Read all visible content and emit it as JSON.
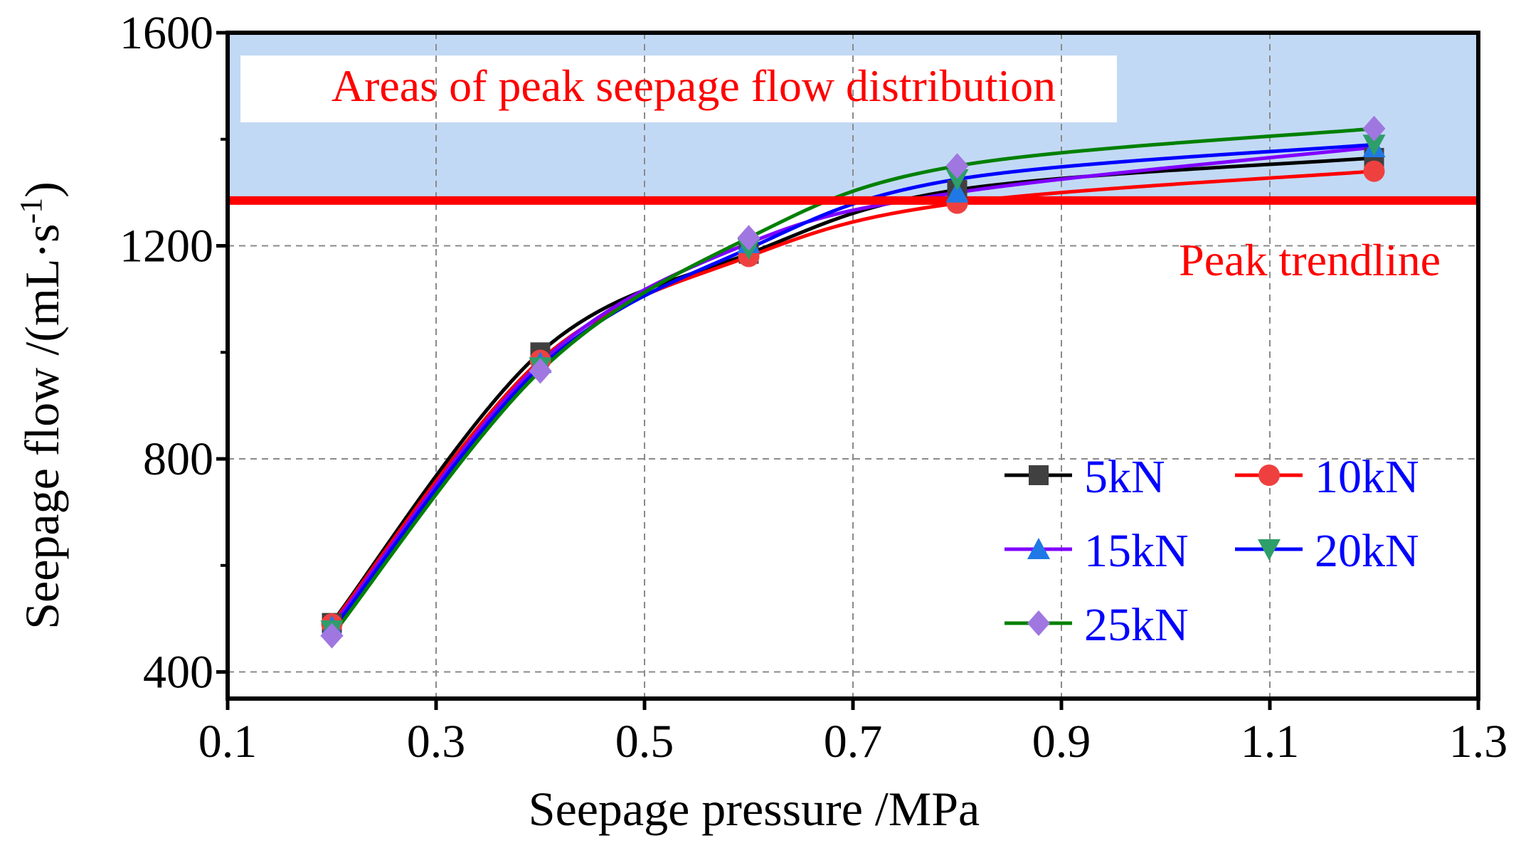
{
  "chart_data": {
    "type": "line",
    "xlabel": "Seepage pressure /MPa",
    "ylabel_main": "Seepage flow /(mL·s",
    "ylabel_sup": "-1",
    "ylabel_close": ")",
    "xlim": [
      0.1,
      1.3
    ],
    "ylim": [
      350,
      1600
    ],
    "x_ticks": [
      0.1,
      0.3,
      0.5,
      0.7,
      0.9,
      1.1,
      1.3
    ],
    "x_tick_labels": [
      "0.1",
      "0.3",
      "0.5",
      "0.7",
      "0.9",
      "1.1",
      "1.3"
    ],
    "y_ticks": [
      400,
      800,
      1200,
      1600
    ],
    "y_tick_labels": [
      "400",
      "800",
      "1200",
      "1600"
    ],
    "y_minor_ticks": [
      600,
      1000,
      1400
    ],
    "grid": true,
    "x": [
      0.2,
      0.4,
      0.6,
      0.8,
      1.2
    ],
    "series": [
      {
        "name": "5kN",
        "values": [
          492,
          1000,
          1185,
          1305,
          1365
        ],
        "color": "#000000",
        "marker": "square",
        "marker_color": "#404040"
      },
      {
        "name": "10kN",
        "values": [
          490,
          985,
          1180,
          1280,
          1340
        ],
        "color": "#ff0000",
        "marker": "circle",
        "marker_color": "#ef4040"
      },
      {
        "name": "15kN",
        "values": [
          485,
          980,
          1205,
          1300,
          1385
        ],
        "color": "#8000ff",
        "marker": "triangle-up",
        "marker_color": "#1f78e6"
      },
      {
        "name": "20kN",
        "values": [
          478,
          972,
          1195,
          1325,
          1390
        ],
        "color": "#0000ff",
        "marker": "triangle-down",
        "marker_color": "#2e9e6a"
      },
      {
        "name": "25kN",
        "values": [
          468,
          965,
          1215,
          1350,
          1420
        ],
        "color": "#008000",
        "marker": "diamond",
        "marker_color": "#a077e0"
      }
    ],
    "shaded_region": {
      "y_from": 1285,
      "y_to": 1600,
      "color": "#c2d9f5",
      "label": "Areas of peak seepage flow distribution",
      "label_color": "#ff0000"
    },
    "trendline": {
      "y": 1285,
      "color": "#ff0000",
      "label": "Peak trendline"
    },
    "legend_position": "lower-right",
    "legend_text_color": "#0000ff"
  }
}
